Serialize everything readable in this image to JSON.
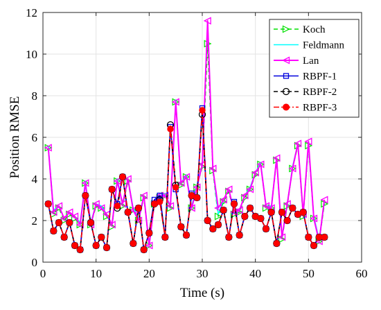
{
  "chart_data": {
    "type": "line",
    "title": "",
    "xlabel": "Time (s)",
    "ylabel": "Position RMSE",
    "xlim": [
      0,
      60
    ],
    "ylim": [
      0,
      12
    ],
    "x_ticks": [
      0,
      10,
      20,
      30,
      40,
      50,
      60
    ],
    "y_ticks": [
      0,
      2,
      4,
      6,
      8,
      10,
      12
    ],
    "grid": true,
    "legend_position": "top-right",
    "x": [
      1,
      2,
      3,
      4,
      5,
      6,
      7,
      8,
      9,
      10,
      11,
      12,
      13,
      14,
      15,
      16,
      17,
      18,
      19,
      20,
      21,
      22,
      23,
      24,
      25,
      26,
      27,
      28,
      29,
      30,
      31,
      32,
      33,
      34,
      35,
      36,
      37,
      38,
      39,
      40,
      41,
      42,
      43,
      44,
      45,
      46,
      47,
      48,
      49,
      50,
      51,
      52,
      53
    ],
    "series": [
      {
        "name": "Koch",
        "color": "#00e000",
        "line": "dashed",
        "marker": "triangle-right",
        "values": [
          5.5,
          2.3,
          2.6,
          2.0,
          2.3,
          2.1,
          1.8,
          3.8,
          1.8,
          2.7,
          2.6,
          2.2,
          1.7,
          3.9,
          2.7,
          3.9,
          2.5,
          2.0,
          3.1,
          0.8,
          2.8,
          3.1,
          3.2,
          2.6,
          7.7,
          3.7,
          4.1,
          2.6,
          3.6,
          4.6,
          10.5,
          4.4,
          2.2,
          2.9,
          3.4,
          2.3,
          2.4,
          3.1,
          3.5,
          4.2,
          4.7,
          2.6,
          2.6,
          4.9,
          1.1,
          2.7,
          4.5,
          5.6,
          2.2,
          5.6,
          2.1,
          1.0,
          2.8
        ]
      },
      {
        "name": "Feldmann",
        "color": "#00ffff",
        "line": "solid",
        "marker": "none",
        "values": [
          5.6,
          2.5,
          2.7,
          2.1,
          2.4,
          2.2,
          1.9,
          3.9,
          1.9,
          2.8,
          2.7,
          2.3,
          1.8,
          4.0,
          2.8,
          4.0,
          2.6,
          2.1,
          3.2,
          0.9,
          2.9,
          3.2,
          3.3,
          2.7,
          7.8,
          3.8,
          4.2,
          2.7,
          3.7,
          4.7,
          11.6,
          4.5,
          2.3,
          3.0,
          3.5,
          2.4,
          2.5,
          3.2,
          3.6,
          4.3,
          4.8,
          2.7,
          2.7,
          5.0,
          1.2,
          2.8,
          4.6,
          5.7,
          2.3,
          5.7,
          2.2,
          1.1,
          2.9
        ]
      },
      {
        "name": "Lan",
        "color": "#ff00ff",
        "line": "solid",
        "marker": "triangle-left",
        "values": [
          5.5,
          2.4,
          2.7,
          2.1,
          2.4,
          2.2,
          1.8,
          3.8,
          1.8,
          2.8,
          2.6,
          2.3,
          1.8,
          3.9,
          2.8,
          4.0,
          2.5,
          2.0,
          3.2,
          0.8,
          2.9,
          3.2,
          3.2,
          2.7,
          7.7,
          3.8,
          4.1,
          2.6,
          3.6,
          4.7,
          11.6,
          4.5,
          2.6,
          3.0,
          3.5,
          2.4,
          2.5,
          3.2,
          3.5,
          4.3,
          4.7,
          2.7,
          2.6,
          5.0,
          1.2,
          2.8,
          4.5,
          5.7,
          2.3,
          5.8,
          2.1,
          1.0,
          3.0
        ]
      },
      {
        "name": "RBPF-1",
        "color": "#0000dd",
        "line": "solid",
        "marker": "square",
        "values": [
          2.8,
          1.5,
          1.9,
          1.2,
          1.9,
          0.8,
          0.6,
          3.2,
          1.9,
          0.8,
          1.2,
          0.7,
          3.5,
          2.8,
          4.1,
          2.4,
          0.9,
          2.6,
          0.6,
          1.4,
          3.0,
          3.2,
          1.2,
          6.5,
          3.5,
          1.7,
          1.3,
          3.3,
          3.1,
          7.4,
          2.0,
          1.6,
          1.8,
          2.5,
          1.2,
          2.9,
          1.3,
          2.2,
          2.6,
          2.2,
          2.1,
          1.6,
          2.4,
          0.9,
          2.4,
          2.0,
          2.6,
          2.3,
          2.4,
          1.2,
          0.8,
          1.2,
          1.2
        ]
      },
      {
        "name": "RBPF-2",
        "color": "#000000",
        "line": "dashed",
        "marker": "circle",
        "values": [
          2.8,
          1.5,
          1.9,
          1.2,
          1.9,
          0.8,
          0.6,
          3.2,
          1.9,
          0.8,
          1.2,
          0.7,
          3.5,
          2.6,
          4.1,
          2.4,
          0.9,
          2.6,
          0.6,
          1.4,
          2.8,
          3.0,
          1.2,
          6.6,
          3.7,
          1.7,
          1.3,
          3.2,
          3.1,
          7.1,
          2.0,
          1.6,
          1.8,
          2.5,
          1.2,
          2.8,
          1.3,
          2.2,
          2.6,
          2.2,
          2.1,
          1.6,
          2.4,
          0.9,
          2.4,
          2.0,
          2.6,
          2.3,
          2.4,
          1.2,
          0.8,
          1.2,
          1.2
        ]
      },
      {
        "name": "RBPF-3",
        "color": "#ff0000",
        "line": "dashdot",
        "marker": "asterisk",
        "values": [
          2.8,
          1.5,
          1.9,
          1.2,
          1.9,
          0.8,
          0.6,
          3.2,
          1.9,
          0.8,
          1.2,
          0.7,
          3.5,
          2.7,
          4.1,
          2.4,
          0.9,
          2.6,
          0.6,
          1.4,
          2.8,
          2.9,
          1.2,
          6.4,
          3.6,
          1.7,
          1.3,
          3.2,
          3.1,
          7.3,
          2.0,
          1.6,
          1.8,
          2.5,
          1.2,
          2.8,
          1.3,
          2.2,
          2.6,
          2.2,
          2.1,
          1.6,
          2.4,
          0.9,
          2.4,
          2.0,
          2.6,
          2.3,
          2.4,
          1.2,
          0.8,
          1.2,
          1.2
        ]
      }
    ]
  }
}
